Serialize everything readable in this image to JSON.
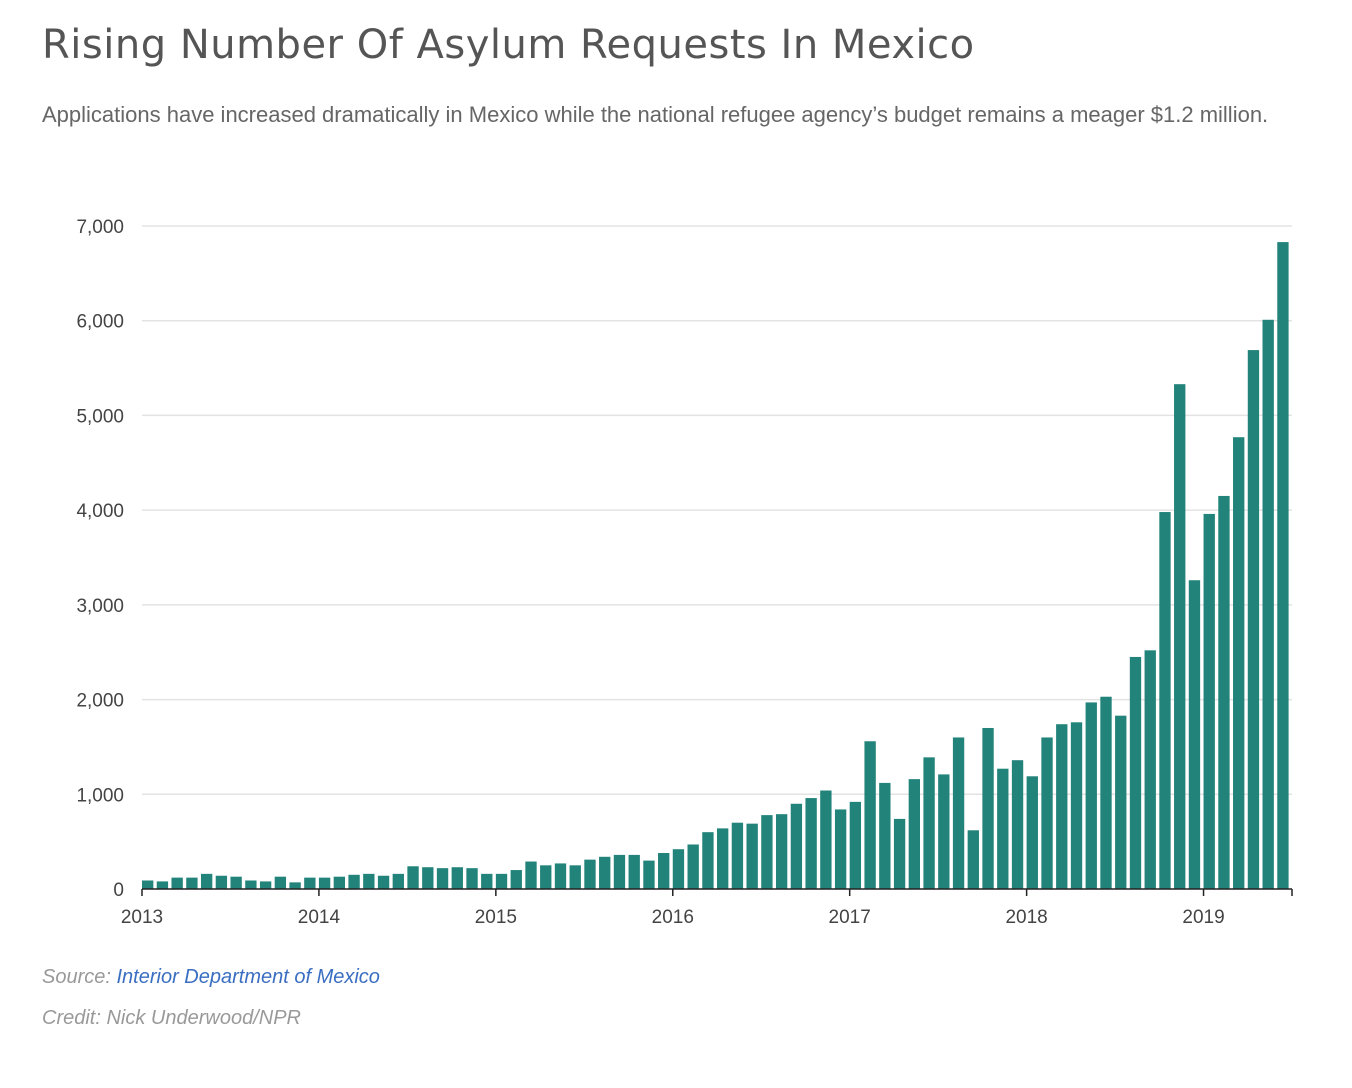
{
  "header": {
    "title": "Rising Number Of Asylum Requests In Mexico",
    "subtitle": "Applications have increased dramatically in Mexico while the national refugee agency’s budget remains a meager $1.2 million."
  },
  "footer": {
    "source_label": "Source: ",
    "source_link": "Interior Department of Mexico",
    "credit": "Credit: Nick Underwood/NPR"
  },
  "colors": {
    "bar": "#22837a",
    "gridline": "#e3e3e3",
    "axis": "#222222",
    "link": "#3a6ec1"
  },
  "chart_data": {
    "type": "bar",
    "start_month": "2013-01",
    "end_month": "2019-06",
    "frequency": "monthly",
    "title": "Rising Number Of Asylum Requests In Mexico",
    "xlabel": "",
    "ylabel": "",
    "ylim": [
      0,
      7000
    ],
    "y_ticks": [
      0,
      1000,
      2000,
      3000,
      4000,
      5000,
      6000,
      7000
    ],
    "y_tick_labels": [
      "0",
      "1,000",
      "2,000",
      "3,000",
      "4,000",
      "5,000",
      "6,000",
      "7,000"
    ],
    "x_tick_labels": [
      "2013",
      "2014",
      "2015",
      "2016",
      "2017",
      "2018",
      "2019"
    ],
    "grid": true,
    "legend": "none",
    "series": [
      {
        "values": [
          90,
          80,
          120,
          120,
          160,
          140,
          130,
          90,
          80,
          130,
          70,
          120,
          120,
          130,
          150,
          160,
          140,
          160,
          240,
          230,
          220,
          230,
          220,
          160,
          160,
          200,
          290,
          250,
          270,
          250,
          310,
          340,
          360,
          360,
          300,
          380,
          420,
          470,
          600,
          640,
          700,
          690,
          780,
          790,
          900,
          960,
          1040,
          840,
          920,
          1560,
          1120,
          740,
          1160,
          1390,
          1210,
          1600,
          620,
          1700,
          1270,
          1360,
          1190,
          1600,
          1740,
          1760,
          1970,
          2030,
          1830,
          2450,
          2520,
          3980,
          5330,
          3260,
          3960,
          4150,
          4770,
          5690,
          6010,
          6830
        ]
      }
    ]
  }
}
